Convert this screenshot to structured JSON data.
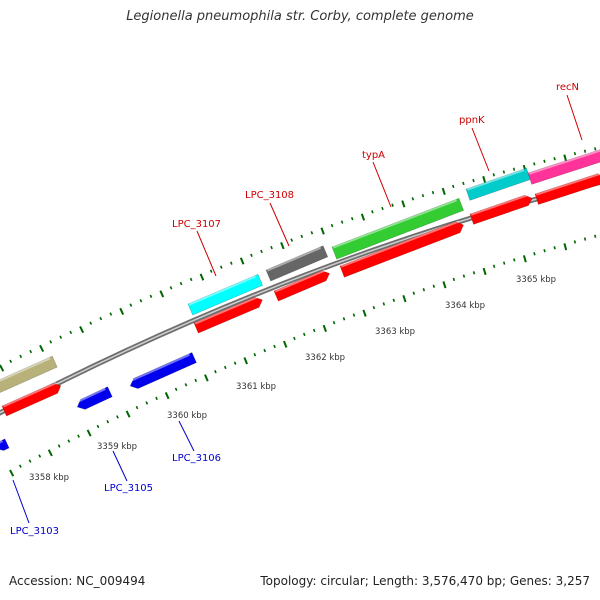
{
  "title": "Legionella pneumophila str. Corby, complete genome",
  "footer": {
    "accession": "Accession: NC_009494",
    "summary": "Topology: circular; Length: 3,576,470 bp; Genes: 3,257"
  },
  "colors": {
    "forward_label": "#cc0000",
    "reverse_label": "#0000cc",
    "tick": "#006600",
    "backbone": "#888888",
    "cds": "#ff0000",
    "reverse_gene": "#0000ee"
  },
  "kbp_marks": [
    {
      "label": "3358 kbp",
      "kbp": 3358
    },
    {
      "label": "3359 kbp",
      "kbp": 3359
    },
    {
      "label": "3360 kbp",
      "kbp": 3360
    },
    {
      "label": "3361 kbp",
      "kbp": 3361
    },
    {
      "label": "3362 kbp",
      "kbp": 3362
    },
    {
      "label": "3363 kbp",
      "kbp": 3363
    },
    {
      "label": "3364 kbp",
      "kbp": 3364
    },
    {
      "label": "3365 kbp",
      "kbp": 3365
    }
  ],
  "forward_genes": [
    {
      "label": "",
      "color": "#b8b27a"
    },
    {
      "label": "LPC_3107",
      "color": "#00ffff"
    },
    {
      "label": "LPC_3108",
      "color": "#666666"
    },
    {
      "label": "typA",
      "color": "#33cc33"
    },
    {
      "label": "ppnK",
      "color": "#00cccc"
    },
    {
      "label": "recN",
      "color": "#ff3399"
    }
  ],
  "reverse_genes": [
    {
      "label": "LPC_3103"
    },
    {
      "label": "LPC_3105"
    },
    {
      "label": "LPC_3106"
    }
  ]
}
